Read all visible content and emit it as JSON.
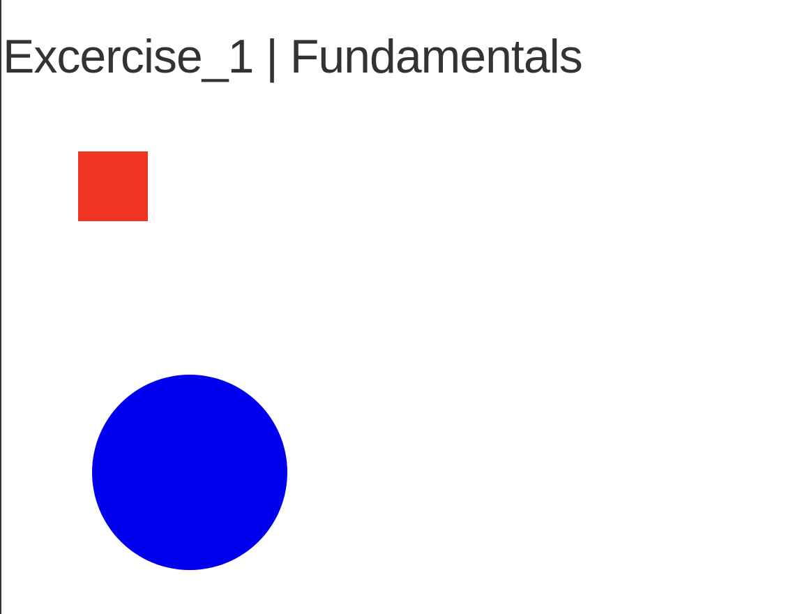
{
  "page": {
    "title": "Excercise_1 | Fundamentals",
    "title_color": "#333333",
    "background_color": "#ffffff"
  },
  "shapes": {
    "square": {
      "color": "#ee3524"
    },
    "circle": {
      "color": "#0000ee"
    }
  }
}
